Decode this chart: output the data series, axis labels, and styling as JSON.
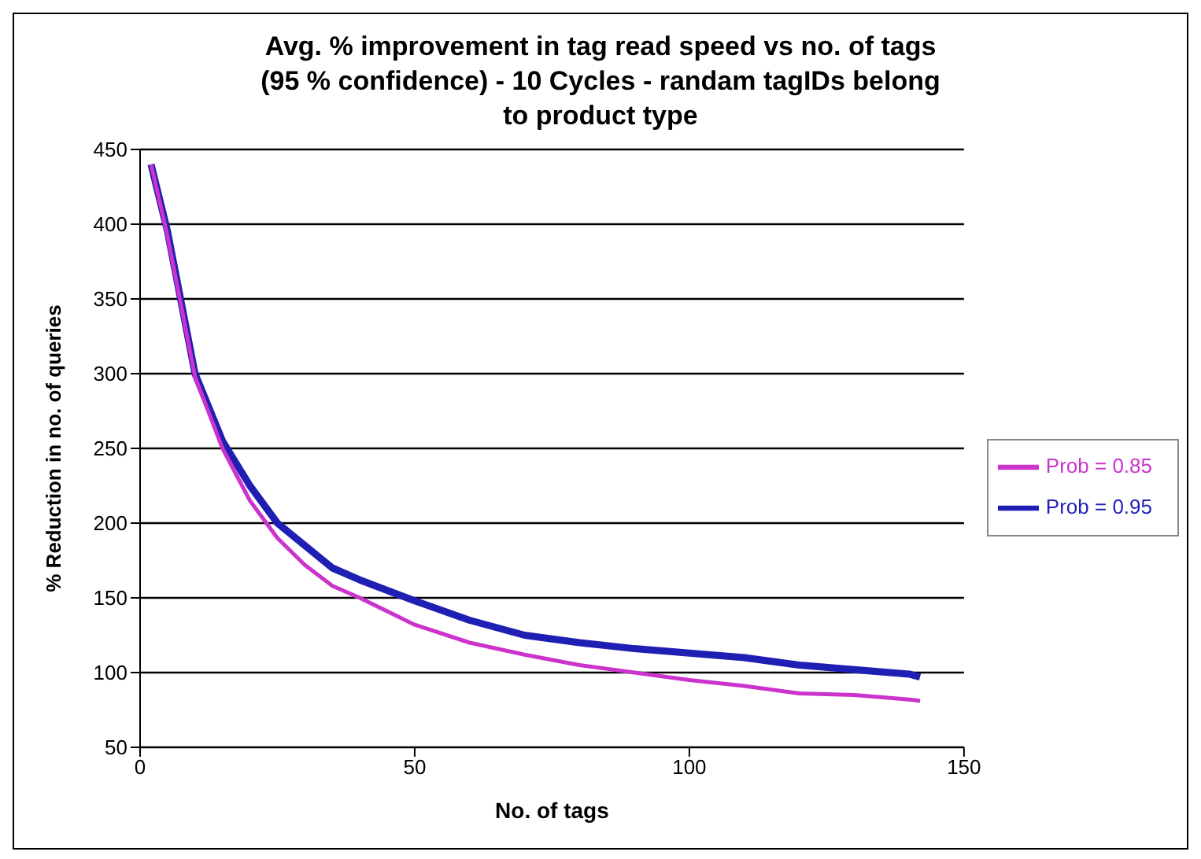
{
  "chart_data": {
    "type": "line",
    "title": "Avg. % improvement in tag read speed vs no. of tags (95 % confidence) - 10 Cycles - randam tagIDs belong to product type",
    "xlabel": "No. of tags",
    "ylabel": "% Reduction in no. of queries",
    "x": [
      2,
      5,
      10,
      15,
      20,
      25,
      30,
      35,
      40,
      50,
      60,
      70,
      80,
      90,
      100,
      110,
      120,
      130,
      140,
      142
    ],
    "series": [
      {
        "name": "Prob = 0.95",
        "color": "#1f1fb4",
        "values": [
          440,
          395,
          300,
          255,
          225,
          200,
          185,
          170,
          162,
          148,
          135,
          125,
          120,
          116,
          113,
          110,
          105,
          102,
          99,
          97
        ]
      },
      {
        "name": "Prob = 0.85",
        "color": "#cc33cc",
        "values": [
          440,
          392,
          298,
          250,
          215,
          190,
          172,
          158,
          150,
          132,
          120,
          112,
          105,
          100,
          95,
          91,
          86,
          85,
          82,
          81
        ]
      }
    ],
    "xlim": [
      0,
      150
    ],
    "xticks": [
      0,
      50,
      100,
      150
    ],
    "ylim": [
      50,
      450
    ],
    "yticks": [
      50,
      100,
      150,
      200,
      250,
      300,
      350,
      400,
      450
    ],
    "grid": "y",
    "legend": "right",
    "marker": "none",
    "line_style": "solid"
  }
}
